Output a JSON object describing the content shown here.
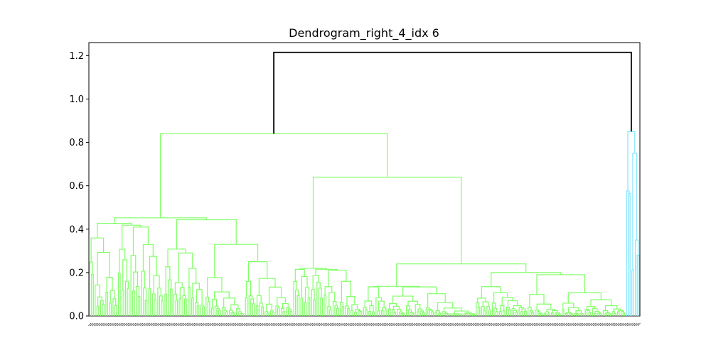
{
  "chart_data": {
    "type": "dendrogram",
    "title": "Dendrogram_right_4_idx 6",
    "xlabel": "",
    "ylabel": "",
    "ylim": [
      0,
      1.26
    ],
    "yticks": [
      0.0,
      0.2,
      0.4,
      0.6,
      0.8,
      1.0,
      1.2
    ],
    "ytick_labels": [
      "0.0",
      "0.2",
      "0.4",
      "0.6",
      "0.8",
      "1.0",
      "1.2"
    ],
    "grid": false,
    "colors": {
      "cluster_a": "#80ff66",
      "cluster_b": "#80e5ff",
      "root": "#000000"
    },
    "root_merge_height": 1.215,
    "clusters": [
      {
        "color": "#80ff66",
        "leaf_count": 300,
        "top_merge_height": 0.84,
        "major_merge_heights": [
          0.84,
          0.64,
          0.45,
          0.43,
          0.42,
          0.33,
          0.29,
          0.25,
          0.24,
          0.23,
          0.21,
          0.2,
          0.19,
          0.19
        ]
      },
      {
        "color": "#80e5ff",
        "leaf_count": 8,
        "top_merge_height": 0.85,
        "major_merge_heights": [
          0.85,
          0.75,
          0.62,
          0.52,
          0.35,
          0.28
        ]
      }
    ]
  }
}
